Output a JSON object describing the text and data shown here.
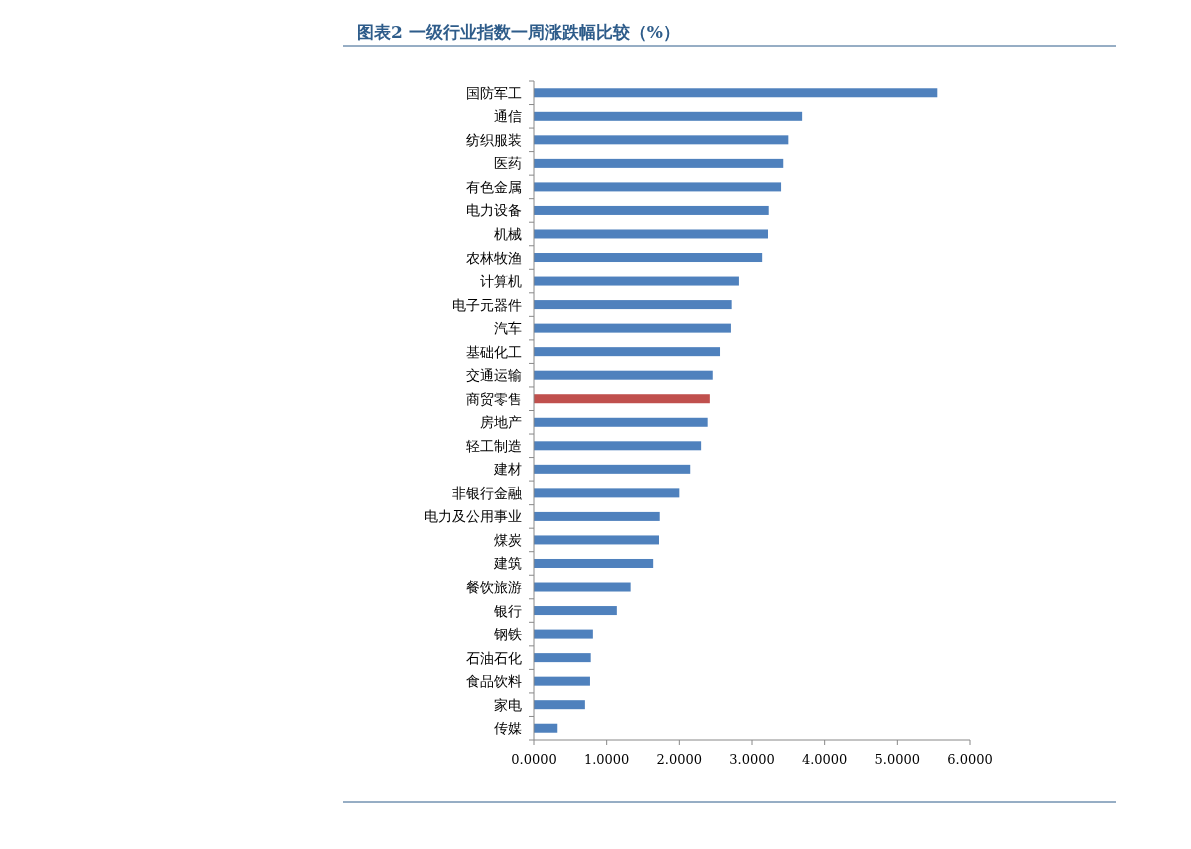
{
  "chart_data": {
    "type": "bar",
    "orientation": "horizontal",
    "title": "图表2 一级行业指数一周涨跌幅比较（%）",
    "categories": [
      "国防军工",
      "通信",
      "纺织服装",
      "医药",
      "有色金属",
      "电力设备",
      "机械",
      "农林牧渔",
      "计算机",
      "电子元器件",
      "汽车",
      "基础化工",
      "交通运输",
      "商贸零售",
      "房地产",
      "轻工制造",
      "建材",
      "非银行金融",
      "电力及公用事业",
      "煤炭",
      "建筑",
      "餐饮旅游",
      "银行",
      "钢铁",
      "石油石化",
      "食品饮料",
      "家电",
      "传媒"
    ],
    "values": [
      5.55,
      3.69,
      3.5,
      3.43,
      3.4,
      3.23,
      3.22,
      3.14,
      2.82,
      2.72,
      2.71,
      2.56,
      2.46,
      2.42,
      2.39,
      2.3,
      2.15,
      2.0,
      1.73,
      1.72,
      1.64,
      1.33,
      1.14,
      0.81,
      0.78,
      0.77,
      0.7,
      0.32
    ],
    "colors": [
      "#4f81bd",
      "#4f81bd",
      "#4f81bd",
      "#4f81bd",
      "#4f81bd",
      "#4f81bd",
      "#4f81bd",
      "#4f81bd",
      "#4f81bd",
      "#4f81bd",
      "#4f81bd",
      "#4f81bd",
      "#4f81bd",
      "#c0504d",
      "#4f81bd",
      "#4f81bd",
      "#4f81bd",
      "#4f81bd",
      "#4f81bd",
      "#4f81bd",
      "#4f81bd",
      "#4f81bd",
      "#4f81bd",
      "#4f81bd",
      "#4f81bd",
      "#4f81bd",
      "#4f81bd",
      "#4f81bd"
    ],
    "xlim": [
      0,
      6
    ],
    "xticks": [
      {
        "value": 0,
        "label": "0.0000"
      },
      {
        "value": 1,
        "label": "1.0000"
      },
      {
        "value": 2,
        "label": "2.0000"
      },
      {
        "value": 3,
        "label": "3.0000"
      },
      {
        "value": 4,
        "label": "4.0000"
      },
      {
        "value": 5,
        "label": "5.0000"
      },
      {
        "value": 6,
        "label": "6.0000"
      }
    ],
    "grid": false
  }
}
